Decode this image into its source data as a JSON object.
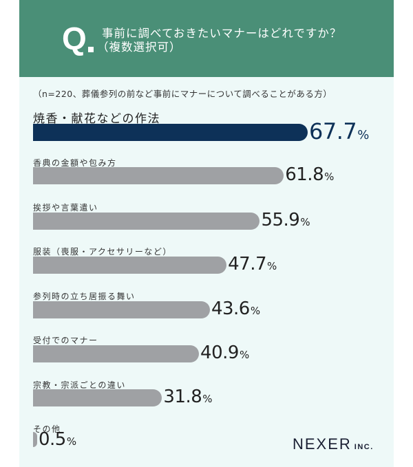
{
  "header": {
    "q_mark": "Q",
    "question_line1": "事前に調べておきたいマナーはどれですか？",
    "question_line2": "（複数選択可）",
    "color": "#4a8f77"
  },
  "note": "（n=220、葬儀参列の前など事前にマナーについて調べることがある方）",
  "logo": {
    "main": "NEXER",
    "suffix": "INC."
  },
  "chart_data": {
    "type": "bar",
    "orientation": "horizontal",
    "title": "事前に調べておきたいマナーはどれですか？（複数選択可）",
    "subtitle": "（n=220、葬儀参列の前など事前にマナーについて調べることがある方）",
    "categories": [
      "焼香・献花などの作法",
      "香典の金額や包み方",
      "挨拶や言葉遣い",
      "服装（喪服・アクセサリーなど）",
      "参列時の立ち居振る舞い",
      "受付でのマナー",
      "宗教・宗派ごとの違い",
      "その他"
    ],
    "values": [
      67.7,
      61.8,
      55.9,
      47.7,
      43.6,
      40.9,
      31.8,
      0.5
    ],
    "unit": "%",
    "xlabel": "",
    "ylabel": "",
    "highlight_color": "#0d3158",
    "bar_color": "#9fa1a4",
    "grid": false,
    "legend": null
  },
  "rows": [
    {
      "label": "焼香・献花などの作法",
      "num": "67.7",
      "pct": "%"
    },
    {
      "label": "香典の金額や包み方",
      "num": "61.8",
      "pct": "%"
    },
    {
      "label": "挨拶や言葉遣い",
      "num": "55.9",
      "pct": "%"
    },
    {
      "label": "服装（喪服・アクセサリーなど）",
      "num": "47.7",
      "pct": "%"
    },
    {
      "label": "参列時の立ち居振る舞い",
      "num": "43.6",
      "pct": "%"
    },
    {
      "label": "受付でのマナー",
      "num": "40.9",
      "pct": "%"
    },
    {
      "label": "宗教・宗派ごとの違い",
      "num": "31.8",
      "pct": "%"
    },
    {
      "label": "その他",
      "num": "0.5",
      "pct": "%"
    }
  ]
}
